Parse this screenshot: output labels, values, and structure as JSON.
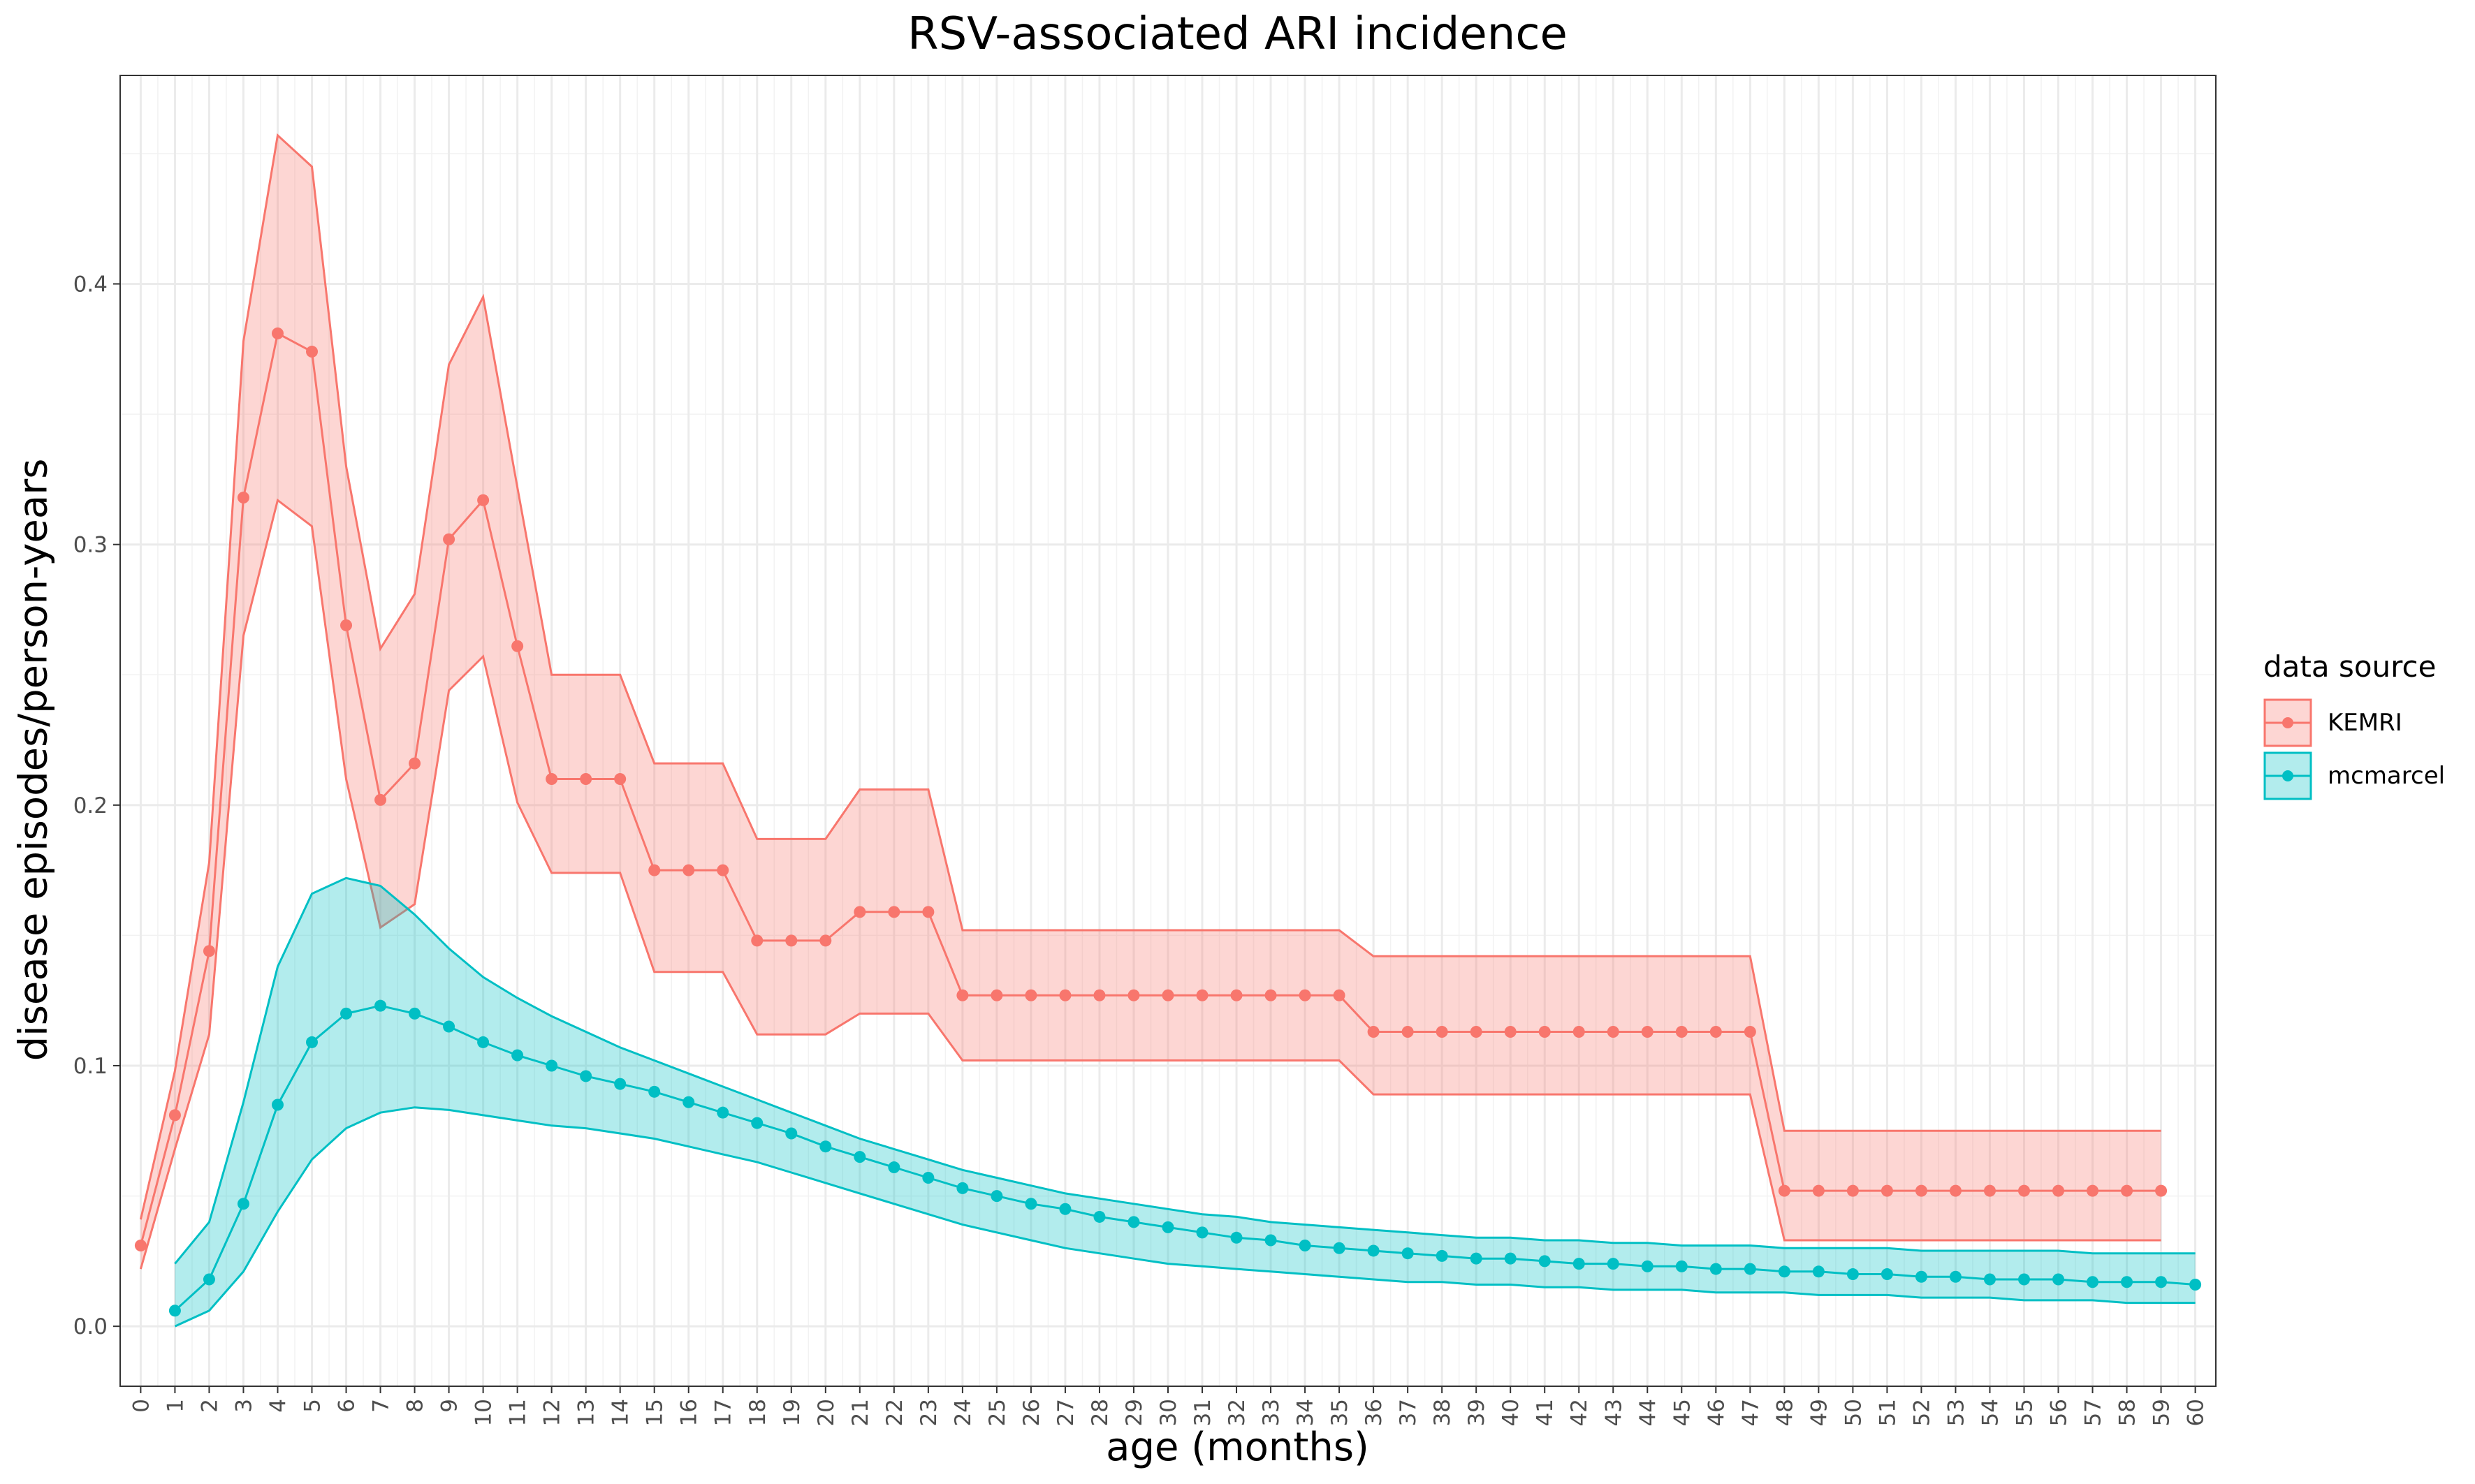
{
  "chart_data": {
    "type": "line",
    "title": "RSV-associated ARI incidence",
    "xlabel": "age (months)",
    "ylabel": "disease episodes/person-years",
    "x_ticks": [
      0,
      1,
      2,
      3,
      4,
      5,
      6,
      7,
      8,
      9,
      10,
      11,
      12,
      13,
      14,
      15,
      16,
      17,
      18,
      19,
      20,
      21,
      22,
      23,
      24,
      25,
      26,
      27,
      28,
      29,
      30,
      31,
      32,
      33,
      34,
      35,
      36,
      37,
      38,
      39,
      40,
      41,
      42,
      43,
      44,
      45,
      46,
      47,
      48,
      49,
      50,
      51,
      52,
      53,
      54,
      55,
      56,
      57,
      58,
      59,
      60
    ],
    "y_ticks": [
      0.0,
      0.1,
      0.2,
      0.3,
      0.4
    ],
    "y_tick_labels": [
      "0.0",
      "0.1",
      "0.2",
      "0.3",
      "0.4"
    ],
    "xlim": [
      -0.6,
      60.6
    ],
    "ylim": [
      -0.023,
      0.48
    ],
    "grid": true,
    "legend_position": "right",
    "legend_title": "data source",
    "series": [
      {
        "name": "KEMRI",
        "color": "#F8766D",
        "fill": "#F8766D",
        "x": [
          0,
          1,
          2,
          3,
          4,
          5,
          6,
          7,
          8,
          9,
          10,
          11,
          12,
          13,
          14,
          15,
          16,
          17,
          18,
          19,
          20,
          21,
          22,
          23,
          24,
          25,
          26,
          27,
          28,
          29,
          30,
          31,
          32,
          33,
          34,
          35,
          36,
          37,
          38,
          39,
          40,
          41,
          42,
          43,
          44,
          45,
          46,
          47,
          48,
          49,
          50,
          51,
          52,
          53,
          54,
          55,
          56,
          57,
          58,
          59
        ],
        "y": [
          0.031,
          0.081,
          0.144,
          0.318,
          0.381,
          0.374,
          0.269,
          0.202,
          0.216,
          0.302,
          0.317,
          0.261,
          0.21,
          0.21,
          0.21,
          0.175,
          0.175,
          0.175,
          0.148,
          0.148,
          0.148,
          0.159,
          0.159,
          0.159,
          0.127,
          0.127,
          0.127,
          0.127,
          0.127,
          0.127,
          0.127,
          0.127,
          0.127,
          0.127,
          0.127,
          0.127,
          0.113,
          0.113,
          0.113,
          0.113,
          0.113,
          0.113,
          0.113,
          0.113,
          0.113,
          0.113,
          0.113,
          0.113,
          0.052,
          0.052,
          0.052,
          0.052,
          0.052,
          0.052,
          0.052,
          0.052,
          0.052,
          0.052,
          0.052,
          0.052
        ],
        "lower": [
          0.022,
          0.068,
          0.112,
          0.265,
          0.317,
          0.307,
          0.21,
          0.153,
          0.162,
          0.244,
          0.257,
          0.201,
          0.174,
          0.174,
          0.174,
          0.136,
          0.136,
          0.136,
          0.112,
          0.112,
          0.112,
          0.12,
          0.12,
          0.12,
          0.102,
          0.102,
          0.102,
          0.102,
          0.102,
          0.102,
          0.102,
          0.102,
          0.102,
          0.102,
          0.102,
          0.102,
          0.089,
          0.089,
          0.089,
          0.089,
          0.089,
          0.089,
          0.089,
          0.089,
          0.089,
          0.089,
          0.089,
          0.089,
          0.033,
          0.033,
          0.033,
          0.033,
          0.033,
          0.033,
          0.033,
          0.033,
          0.033,
          0.033,
          0.033,
          0.033
        ],
        "upper": [
          0.041,
          0.098,
          0.178,
          0.378,
          0.457,
          0.445,
          0.33,
          0.26,
          0.281,
          0.369,
          0.395,
          0.322,
          0.25,
          0.25,
          0.25,
          0.216,
          0.216,
          0.216,
          0.187,
          0.187,
          0.187,
          0.206,
          0.206,
          0.206,
          0.152,
          0.152,
          0.152,
          0.152,
          0.152,
          0.152,
          0.152,
          0.152,
          0.152,
          0.152,
          0.152,
          0.152,
          0.142,
          0.142,
          0.142,
          0.142,
          0.142,
          0.142,
          0.142,
          0.142,
          0.142,
          0.142,
          0.142,
          0.142,
          0.075,
          0.075,
          0.075,
          0.075,
          0.075,
          0.075,
          0.075,
          0.075,
          0.075,
          0.075,
          0.075,
          0.075
        ]
      },
      {
        "name": "mcmarcel",
        "color": "#00BFC4",
        "fill": "#00BFC4",
        "x": [
          1,
          2,
          3,
          4,
          5,
          6,
          7,
          8,
          9,
          10,
          11,
          12,
          13,
          14,
          15,
          16,
          17,
          18,
          19,
          20,
          21,
          22,
          23,
          24,
          25,
          26,
          27,
          28,
          29,
          30,
          31,
          32,
          33,
          34,
          35,
          36,
          37,
          38,
          39,
          40,
          41,
          42,
          43,
          44,
          45,
          46,
          47,
          48,
          49,
          50,
          51,
          52,
          53,
          54,
          55,
          56,
          57,
          58,
          59,
          60
        ],
        "y": [
          0.006,
          0.018,
          0.047,
          0.085,
          0.109,
          0.12,
          0.123,
          0.12,
          0.115,
          0.109,
          0.104,
          0.1,
          0.096,
          0.093,
          0.09,
          0.086,
          0.082,
          0.078,
          0.074,
          0.069,
          0.065,
          0.061,
          0.057,
          0.053,
          0.05,
          0.047,
          0.045,
          0.042,
          0.04,
          0.038,
          0.036,
          0.034,
          0.033,
          0.031,
          0.03,
          0.029,
          0.028,
          0.027,
          0.026,
          0.026,
          0.025,
          0.024,
          0.024,
          0.023,
          0.023,
          0.022,
          0.022,
          0.021,
          0.021,
          0.02,
          0.02,
          0.019,
          0.019,
          0.018,
          0.018,
          0.018,
          0.017,
          0.017,
          0.017,
          0.016
        ],
        "lower": [
          0.0,
          0.006,
          0.021,
          0.044,
          0.064,
          0.076,
          0.082,
          0.084,
          0.083,
          0.081,
          0.079,
          0.077,
          0.076,
          0.074,
          0.072,
          0.069,
          0.066,
          0.063,
          0.059,
          0.055,
          0.051,
          0.047,
          0.043,
          0.039,
          0.036,
          0.033,
          0.03,
          0.028,
          0.026,
          0.024,
          0.023,
          0.022,
          0.021,
          0.02,
          0.019,
          0.018,
          0.017,
          0.017,
          0.016,
          0.016,
          0.015,
          0.015,
          0.014,
          0.014,
          0.014,
          0.013,
          0.013,
          0.013,
          0.012,
          0.012,
          0.012,
          0.011,
          0.011,
          0.011,
          0.01,
          0.01,
          0.01,
          0.009,
          0.009,
          0.009
        ],
        "upper": [
          0.024,
          0.04,
          0.086,
          0.138,
          0.166,
          0.172,
          0.169,
          0.158,
          0.145,
          0.134,
          0.126,
          0.119,
          0.113,
          0.107,
          0.102,
          0.097,
          0.092,
          0.087,
          0.082,
          0.077,
          0.072,
          0.068,
          0.064,
          0.06,
          0.057,
          0.054,
          0.051,
          0.049,
          0.047,
          0.045,
          0.043,
          0.042,
          0.04,
          0.039,
          0.038,
          0.037,
          0.036,
          0.035,
          0.034,
          0.034,
          0.033,
          0.033,
          0.032,
          0.032,
          0.031,
          0.031,
          0.031,
          0.03,
          0.03,
          0.03,
          0.03,
          0.029,
          0.029,
          0.029,
          0.029,
          0.029,
          0.028,
          0.028,
          0.028,
          0.028
        ]
      }
    ]
  }
}
